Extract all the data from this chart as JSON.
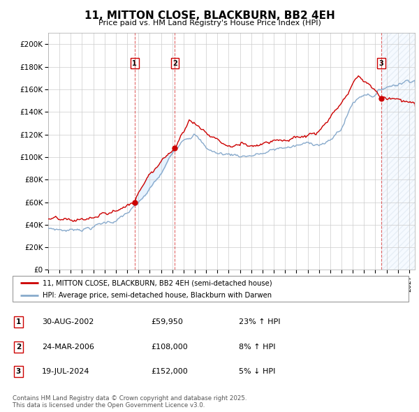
{
  "title": "11, MITTON CLOSE, BLACKBURN, BB2 4EH",
  "subtitle": "Price paid vs. HM Land Registry's House Price Index (HPI)",
  "ylim": [
    0,
    210000
  ],
  "yticks": [
    0,
    20000,
    40000,
    60000,
    80000,
    100000,
    120000,
    140000,
    160000,
    180000,
    200000
  ],
  "ytick_labels": [
    "£0",
    "£20K",
    "£40K",
    "£60K",
    "£80K",
    "£100K",
    "£120K",
    "£140K",
    "£160K",
    "£180K",
    "£200K"
  ],
  "xlim_start": 1995.0,
  "xlim_end": 2027.5,
  "background_color": "#ffffff",
  "plot_bg_color": "#ffffff",
  "grid_color": "#cccccc",
  "sale1_date": 2002.66,
  "sale1_price": 59950,
  "sale1_label": "1",
  "sale2_date": 2006.23,
  "sale2_price": 108000,
  "sale2_label": "2",
  "sale3_date": 2024.54,
  "sale3_price": 152000,
  "sale3_label": "3",
  "legend_line1": "11, MITTON CLOSE, BLACKBURN, BB2 4EH (semi-detached house)",
  "legend_line2": "HPI: Average price, semi-detached house, Blackburn with Darwen",
  "table_row1_num": "1",
  "table_row1_date": "30-AUG-2002",
  "table_row1_price": "£59,950",
  "table_row1_hpi": "23% ↑ HPI",
  "table_row2_num": "2",
  "table_row2_date": "24-MAR-2006",
  "table_row2_price": "£108,000",
  "table_row2_hpi": "8% ↑ HPI",
  "table_row3_num": "3",
  "table_row3_date": "19-JUL-2024",
  "table_row3_price": "£152,000",
  "table_row3_hpi": "5% ↓ HPI",
  "footer": "Contains HM Land Registry data © Crown copyright and database right 2025.\nThis data is licensed under the Open Government Licence v3.0.",
  "line_color_red": "#cc0000",
  "line_color_blue": "#88aacc",
  "shade_color": "#ddeeff",
  "hatch_color": "#bbccdd"
}
